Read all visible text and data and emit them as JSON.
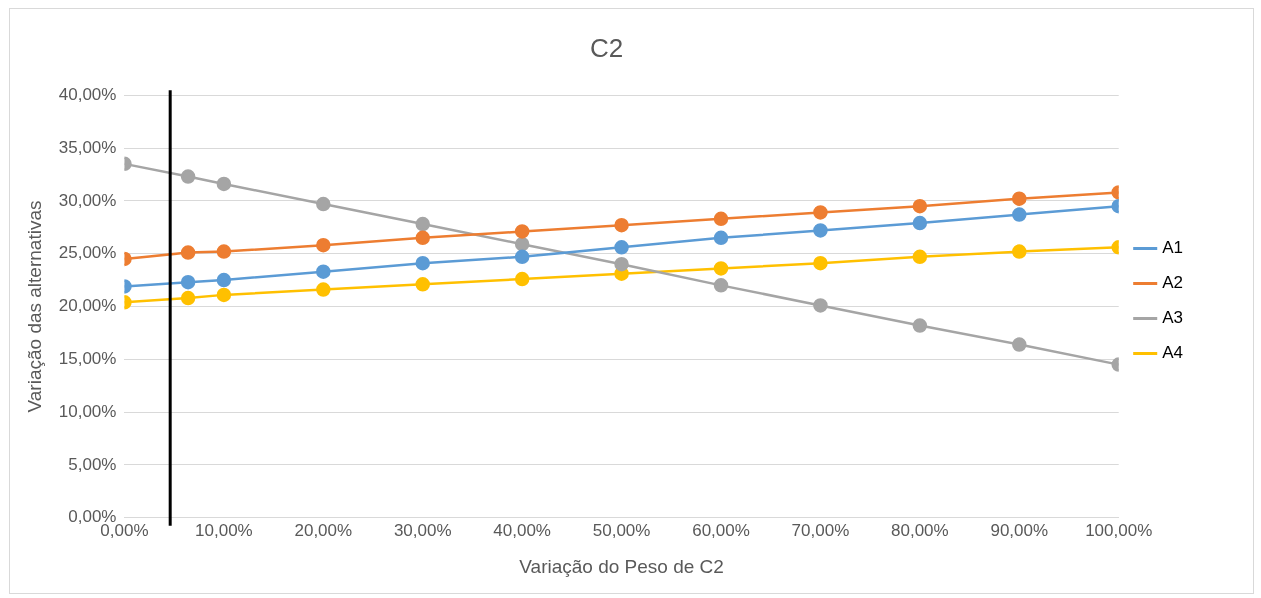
{
  "chart_data": {
    "type": "line",
    "title": "C2",
    "xlabel": "Variação do Peso de C2",
    "ylabel": "Variação das alternativas",
    "x": [
      0,
      6.4,
      10,
      20,
      30,
      40,
      50,
      60,
      70,
      80,
      90,
      100
    ],
    "series": [
      {
        "name": "A1",
        "color": "#5b9bd5",
        "values": [
          21.9,
          22.3,
          22.5,
          23.3,
          24.1,
          24.7,
          25.6,
          26.5,
          27.2,
          27.9,
          28.7,
          29.5
        ]
      },
      {
        "name": "A2",
        "color": "#ed7d31",
        "values": [
          24.5,
          25.1,
          25.2,
          25.8,
          26.5,
          27.1,
          27.7,
          28.3,
          28.9,
          29.5,
          30.2,
          30.8
        ]
      },
      {
        "name": "A3",
        "color": "#a5a5a5",
        "values": [
          33.5,
          32.3,
          31.6,
          29.7,
          27.8,
          25.9,
          24.0,
          22.0,
          20.1,
          18.2,
          16.4,
          14.5
        ]
      },
      {
        "name": "A4",
        "color": "#ffc000",
        "values": [
          20.4,
          20.8,
          21.1,
          21.6,
          22.1,
          22.6,
          23.1,
          23.6,
          24.1,
          24.7,
          25.2,
          25.6
        ]
      }
    ],
    "xlim": [
      0,
      100
    ],
    "xticks": [
      {
        "value": 0,
        "label": "0,00%"
      },
      {
        "value": 10,
        "label": "10,00%"
      },
      {
        "value": 20,
        "label": "20,00%"
      },
      {
        "value": 30,
        "label": "30,00%"
      },
      {
        "value": 40,
        "label": "40,00%"
      },
      {
        "value": 50,
        "label": "50,00%"
      },
      {
        "value": 60,
        "label": "60,00%"
      },
      {
        "value": 70,
        "label": "70,00%"
      },
      {
        "value": 80,
        "label": "80,00%"
      },
      {
        "value": 90,
        "label": "90,00%"
      },
      {
        "value": 100,
        "label": "100,00%"
      }
    ],
    "ylim": [
      0,
      40
    ],
    "yticks": [
      {
        "value": 0,
        "label": "0,00%"
      },
      {
        "value": 5,
        "label": "5,00%"
      },
      {
        "value": 10,
        "label": "10,00%"
      },
      {
        "value": 15,
        "label": "15,00%"
      },
      {
        "value": 20,
        "label": "20,00%"
      },
      {
        "value": 25,
        "label": "25,00%"
      },
      {
        "value": 30,
        "label": "30,00%"
      },
      {
        "value": 35,
        "label": "35,00%"
      },
      {
        "value": 40,
        "label": "40,00%"
      }
    ],
    "ref_lines": [
      {
        "axis": "x",
        "value": 4.6,
        "color": "#000000"
      }
    ],
    "grid": "y",
    "legend": "right",
    "marker": "circle",
    "line_style": "solid"
  }
}
